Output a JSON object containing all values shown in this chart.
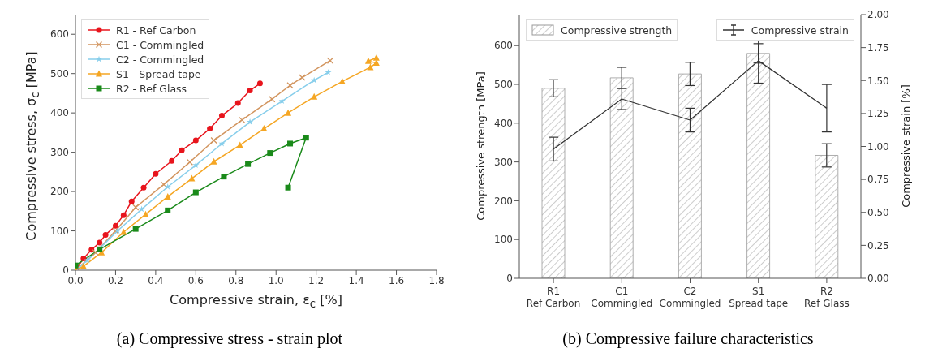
{
  "chart_data": [
    {
      "type": "line",
      "xlabel": "Compressive strain, ε$_{c}$ [%]",
      "ylabel": "Compressive stress, σ$_{c}$ [MPa]",
      "xlim": [
        0,
        1.8
      ],
      "xticks": [
        {
          "value": 0,
          "label": "0.0"
        },
        {
          "value": 0.2,
          "label": "0.2"
        },
        {
          "value": 0.4,
          "label": "0.4"
        },
        {
          "value": 0.6,
          "label": "0.6"
        },
        {
          "value": 0.8,
          "label": "0.8"
        },
        {
          "value": 1,
          "label": "1.0"
        },
        {
          "value": 1.2,
          "label": "1.2"
        },
        {
          "value": 1.4,
          "label": "1.4"
        },
        {
          "value": 1.6,
          "label": "1.6"
        },
        {
          "value": 1.8,
          "label": "1.8"
        }
      ],
      "ylim": [
        0,
        650
      ],
      "yticks": [
        0,
        100,
        200,
        300,
        400,
        500,
        600
      ],
      "legend": "top left",
      "annotations": [
        "(a) Compressive stress - strain plot"
      ],
      "series": [
        {
          "name": "R1 - Ref Carbon",
          "color": "#e8141c",
          "marker": "circle",
          "x": [
            0,
            0.04,
            0.08,
            0.12,
            0.15,
            0.2,
            0.24,
            0.28,
            0.34,
            0.4,
            0.48,
            0.53,
            0.6,
            0.67,
            0.73,
            0.81,
            0.87,
            0.92
          ],
          "values": [
            0,
            30,
            52,
            70,
            90,
            113,
            140,
            175,
            210,
            245,
            278,
            305,
            330,
            360,
            393,
            425,
            457,
            475
          ]
        },
        {
          "name": "C1 - Commingled",
          "color": "#d2955f",
          "marker": "cross",
          "x": [
            0,
            0.1,
            0.2,
            0.3,
            0.44,
            0.57,
            0.69,
            0.83,
            0.98,
            1.07,
            1.13,
            1.27
          ],
          "values": [
            0,
            45,
            100,
            160,
            218,
            275,
            330,
            382,
            435,
            470,
            490,
            533
          ]
        },
        {
          "name": "C2 - Commingled",
          "color": "#87ceeb",
          "marker": "star",
          "x": [
            0,
            0.06,
            0.21,
            0.33,
            0.46,
            0.6,
            0.73,
            0.87,
            1.03,
            1.19,
            1.26
          ],
          "values": [
            0,
            25,
            100,
            155,
            212,
            267,
            322,
            377,
            430,
            483,
            503
          ]
        },
        {
          "name": "S1 - Spread tape",
          "color": "#f5a623",
          "marker": "triangle",
          "x": [
            0,
            0.04,
            0.13,
            0.24,
            0.35,
            0.46,
            0.58,
            0.69,
            0.82,
            0.94,
            1.06,
            1.19,
            1.33,
            1.47,
            1.5,
            1.46,
            1.5
          ],
          "values": [
            0,
            10,
            45,
            97,
            142,
            187,
            233,
            276,
            318,
            360,
            400,
            441,
            480,
            516,
            527,
            532,
            540
          ]
        },
        {
          "name": "R2 - Ref Glass",
          "color": "#1a8a1a",
          "marker": "square",
          "x": [
            0,
            0.12,
            0.3,
            0.46,
            0.6,
            0.74,
            0.86,
            0.97,
            1.07,
            1.15,
            1.06
          ],
          "values": [
            12,
            53,
            105,
            152,
            198,
            238,
            270,
            298,
            322,
            337,
            210
          ]
        }
      ]
    },
    {
      "type": "bar",
      "categories": [
        "R1\nRef Carbon",
        "C1\nCommingled",
        "C2\nCommingled",
        "S1\nSpread tape",
        "R2\nRef Glass"
      ],
      "ylabel": "Compressive strength [MPa]",
      "y2label": "Compressive strain [%]",
      "ylim": [
        0,
        680
      ],
      "yticks": [
        0,
        100,
        200,
        300,
        400,
        500,
        600
      ],
      "y2lim": [
        0,
        2
      ],
      "y2ticks": [
        {
          "value": 0,
          "label": "0.00"
        },
        {
          "value": 0.25,
          "label": "0.25"
        },
        {
          "value": 0.5,
          "label": "0.50"
        },
        {
          "value": 0.75,
          "label": "0.75"
        },
        {
          "value": 1,
          "label": "1.00"
        },
        {
          "value": 1.25,
          "label": "1.25"
        },
        {
          "value": 1.5,
          "label": "1.50"
        },
        {
          "value": 1.75,
          "label": "1.75"
        },
        {
          "value": 2,
          "label": "2.00"
        }
      ],
      "legend": "top",
      "annotations": [
        "(b) Compressive failure characteristics"
      ],
      "series": [
        {
          "name": "Compressive strength",
          "type": "bar",
          "color": "#999999",
          "values": [
            490,
            517,
            527,
            580,
            317
          ],
          "errors": [
            22,
            27,
            30,
            25,
            30
          ]
        },
        {
          "name": "Compressive strain",
          "type": "line",
          "axis": "y2",
          "color": "#333333",
          "values": [
            0.98,
            1.36,
            1.2,
            1.65,
            1.29
          ],
          "errors": [
            0.09,
            0.08,
            0.09,
            0.17,
            0.18
          ]
        }
      ]
    }
  ]
}
